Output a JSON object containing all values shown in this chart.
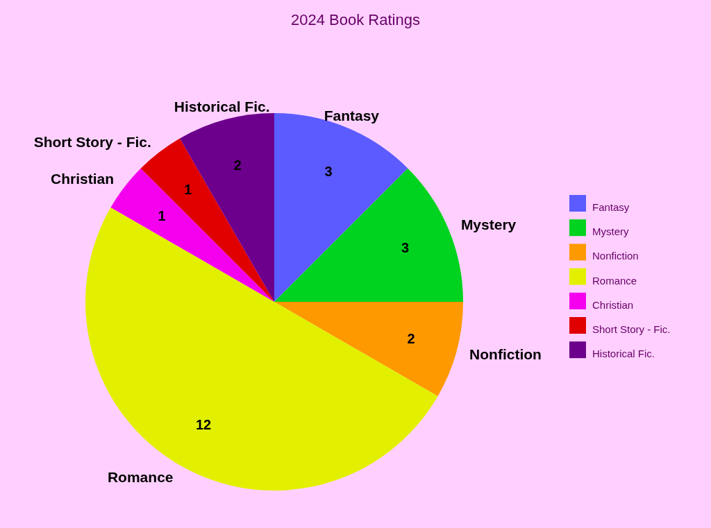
{
  "chart_data": {
    "type": "pie",
    "title": "2024 Book Ratings",
    "categories": [
      "Fantasy",
      "Mystery",
      "Nonfiction",
      "Romance",
      "Christian",
      "Short Story - Fic.",
      "Historical Fic."
    ],
    "values": [
      3,
      3,
      2,
      12,
      1,
      1,
      2
    ],
    "colors": [
      "#5b5bff",
      "#00d31f",
      "#ff9900",
      "#e2f000",
      "#f400ee",
      "#e00000",
      "#6c008c"
    ],
    "data_labels": true,
    "legend": "right"
  }
}
